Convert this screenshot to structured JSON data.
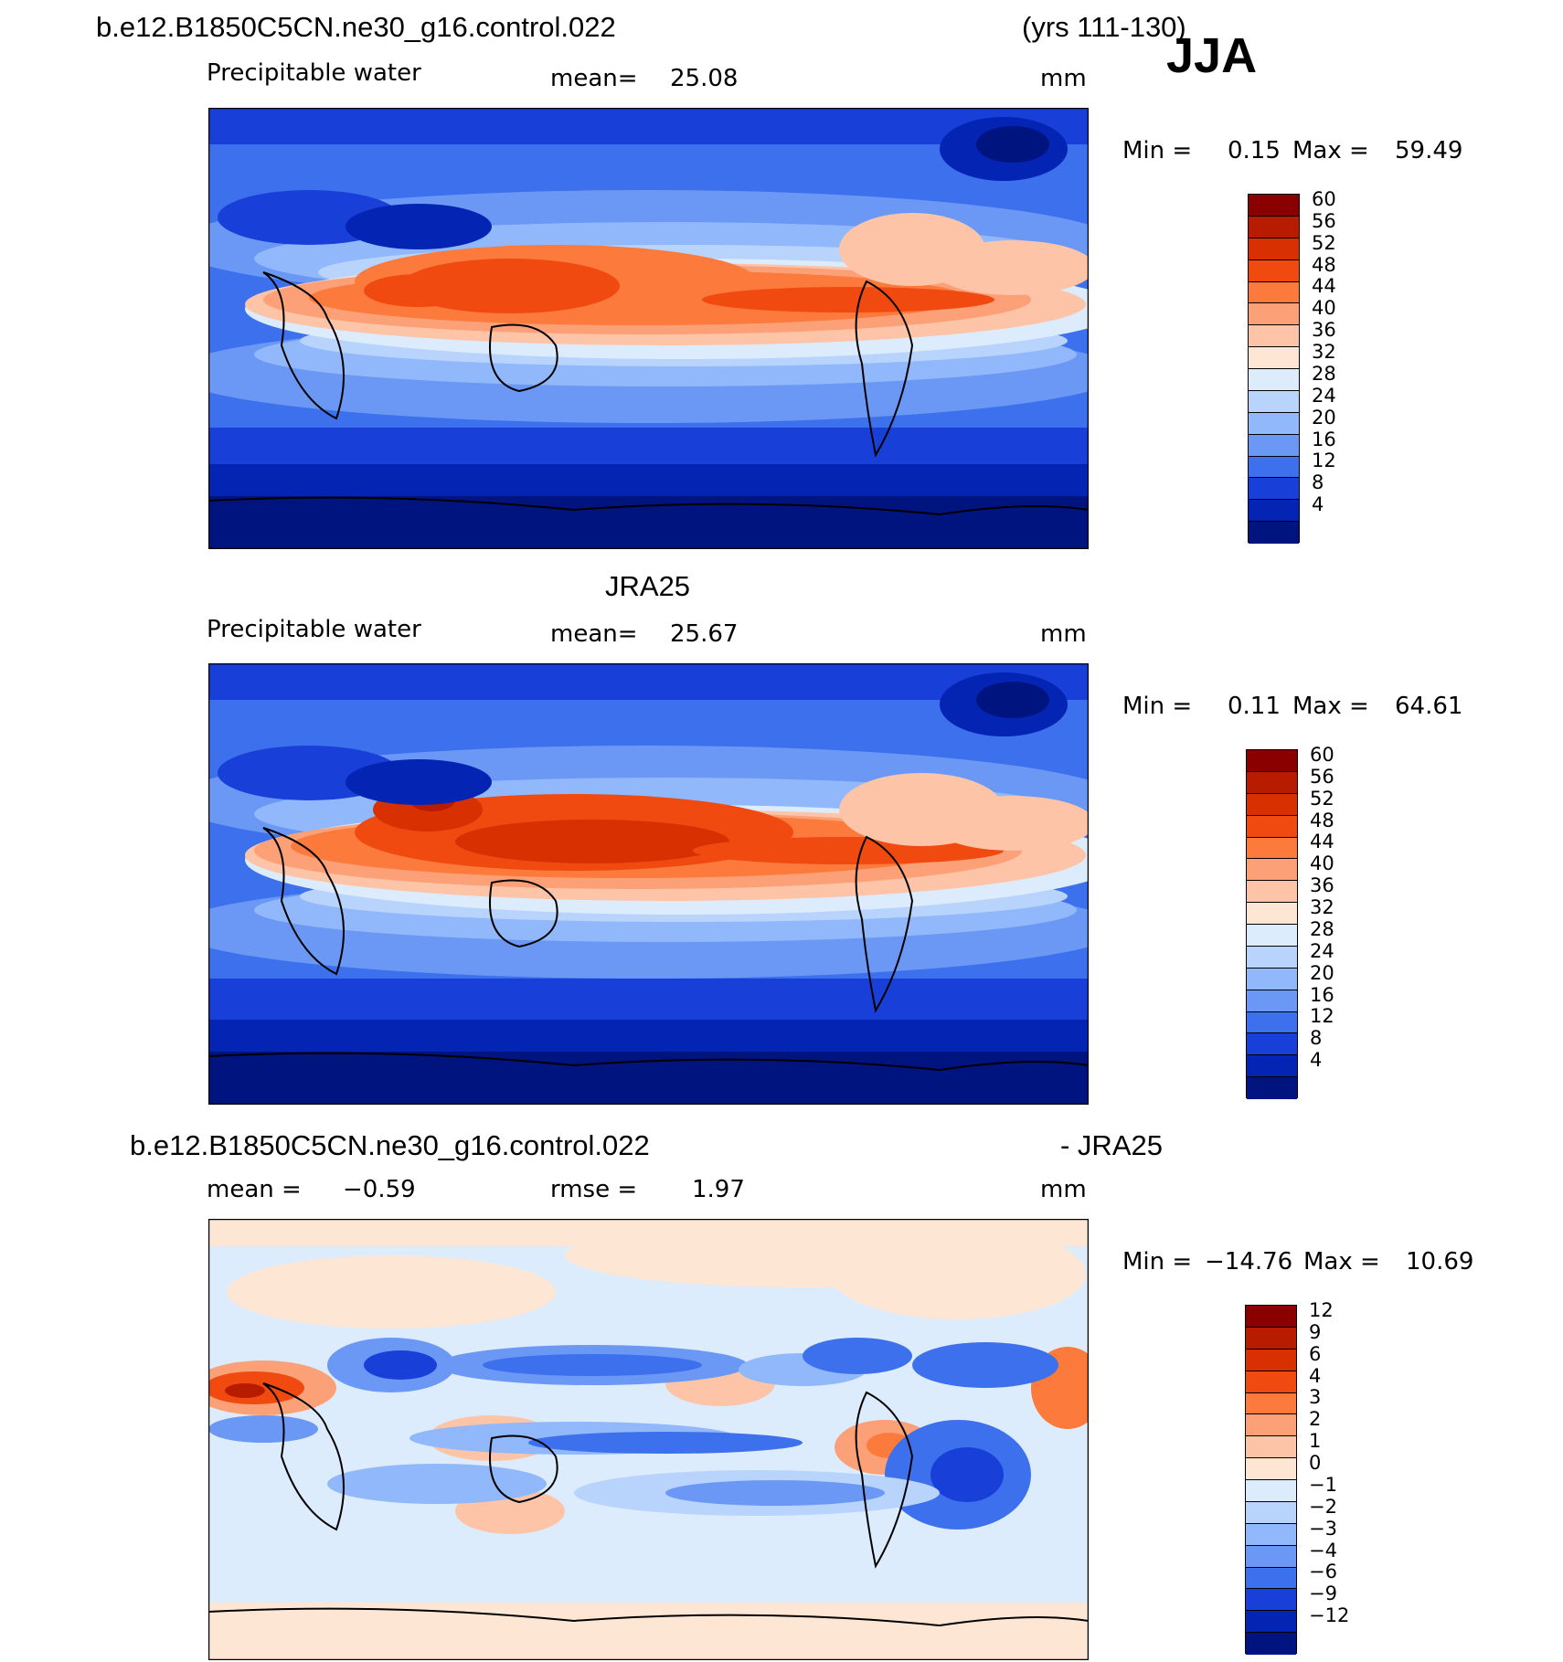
{
  "header": {
    "case_name": "b.e12.B1850C5CN.ne30_g16.control.022",
    "years": "(yrs 111-130)",
    "season": "JJA"
  },
  "panels": [
    {
      "title": "",
      "variable": "Precipitable  water",
      "mean_label": "mean=",
      "mean_value": "25.08",
      "units": "mm",
      "min_label": "Min  =",
      "min_value": "0.15",
      "max_label": "Max  =",
      "max_value": "59.49",
      "scale_levels": [
        "60",
        "56",
        "52",
        "48",
        "44",
        "40",
        "36",
        "32",
        "28",
        "24",
        "20",
        "16",
        "12",
        "8",
        "4"
      ],
      "scale_colors": [
        "#8a0000",
        "#b81c00",
        "#d83000",
        "#f04a10",
        "#fb7a3c",
        "#fca078",
        "#fdc4a8",
        "#fde6d4",
        "#dcecfc",
        "#b8d4fc",
        "#90b8fa",
        "#6a98f4",
        "#3c70ec",
        "#1840d8",
        "#0424b4",
        "#001480"
      ]
    },
    {
      "title": "JRA25",
      "variable": "Precipitable  water",
      "mean_label": "mean=",
      "mean_value": "25.67",
      "units": "mm",
      "min_label": "Min  =",
      "min_value": "0.11",
      "max_label": "Max  =",
      "max_value": "64.61",
      "scale_levels": [
        "60",
        "56",
        "52",
        "48",
        "44",
        "40",
        "36",
        "32",
        "28",
        "24",
        "20",
        "16",
        "12",
        "8",
        "4"
      ],
      "scale_colors": [
        "#8a0000",
        "#b81c00",
        "#d83000",
        "#f04a10",
        "#fb7a3c",
        "#fca078",
        "#fdc4a8",
        "#fde6d4",
        "#dcecfc",
        "#b8d4fc",
        "#90b8fa",
        "#6a98f4",
        "#3c70ec",
        "#1840d8",
        "#0424b4",
        "#001480"
      ]
    },
    {
      "title_left": "b.e12.B1850C5CN.ne30_g16.control.022",
      "title_right": "- JRA25",
      "mean_label": "mean  =",
      "mean_value": "−0.59",
      "rmse_label": "rmse  =",
      "rmse_value": "1.97",
      "units": "mm",
      "min_label": "Min  =",
      "min_value": "−14.76",
      "max_label": "Max  =",
      "max_value": "10.69",
      "scale_levels": [
        "12",
        "9",
        "6",
        "4",
        "3",
        "2",
        "1",
        "0",
        "−1",
        "−2",
        "−3",
        "−4",
        "−6",
        "−9",
        "−12"
      ],
      "scale_colors": [
        "#8a0000",
        "#b81c00",
        "#d83000",
        "#f04a10",
        "#fb7a3c",
        "#fca078",
        "#fdc4a8",
        "#fde6d4",
        "#dcecfc",
        "#b8d4fc",
        "#90b8fa",
        "#6a98f4",
        "#3c70ec",
        "#1840d8",
        "#0424b4",
        "#001480"
      ]
    }
  ]
}
